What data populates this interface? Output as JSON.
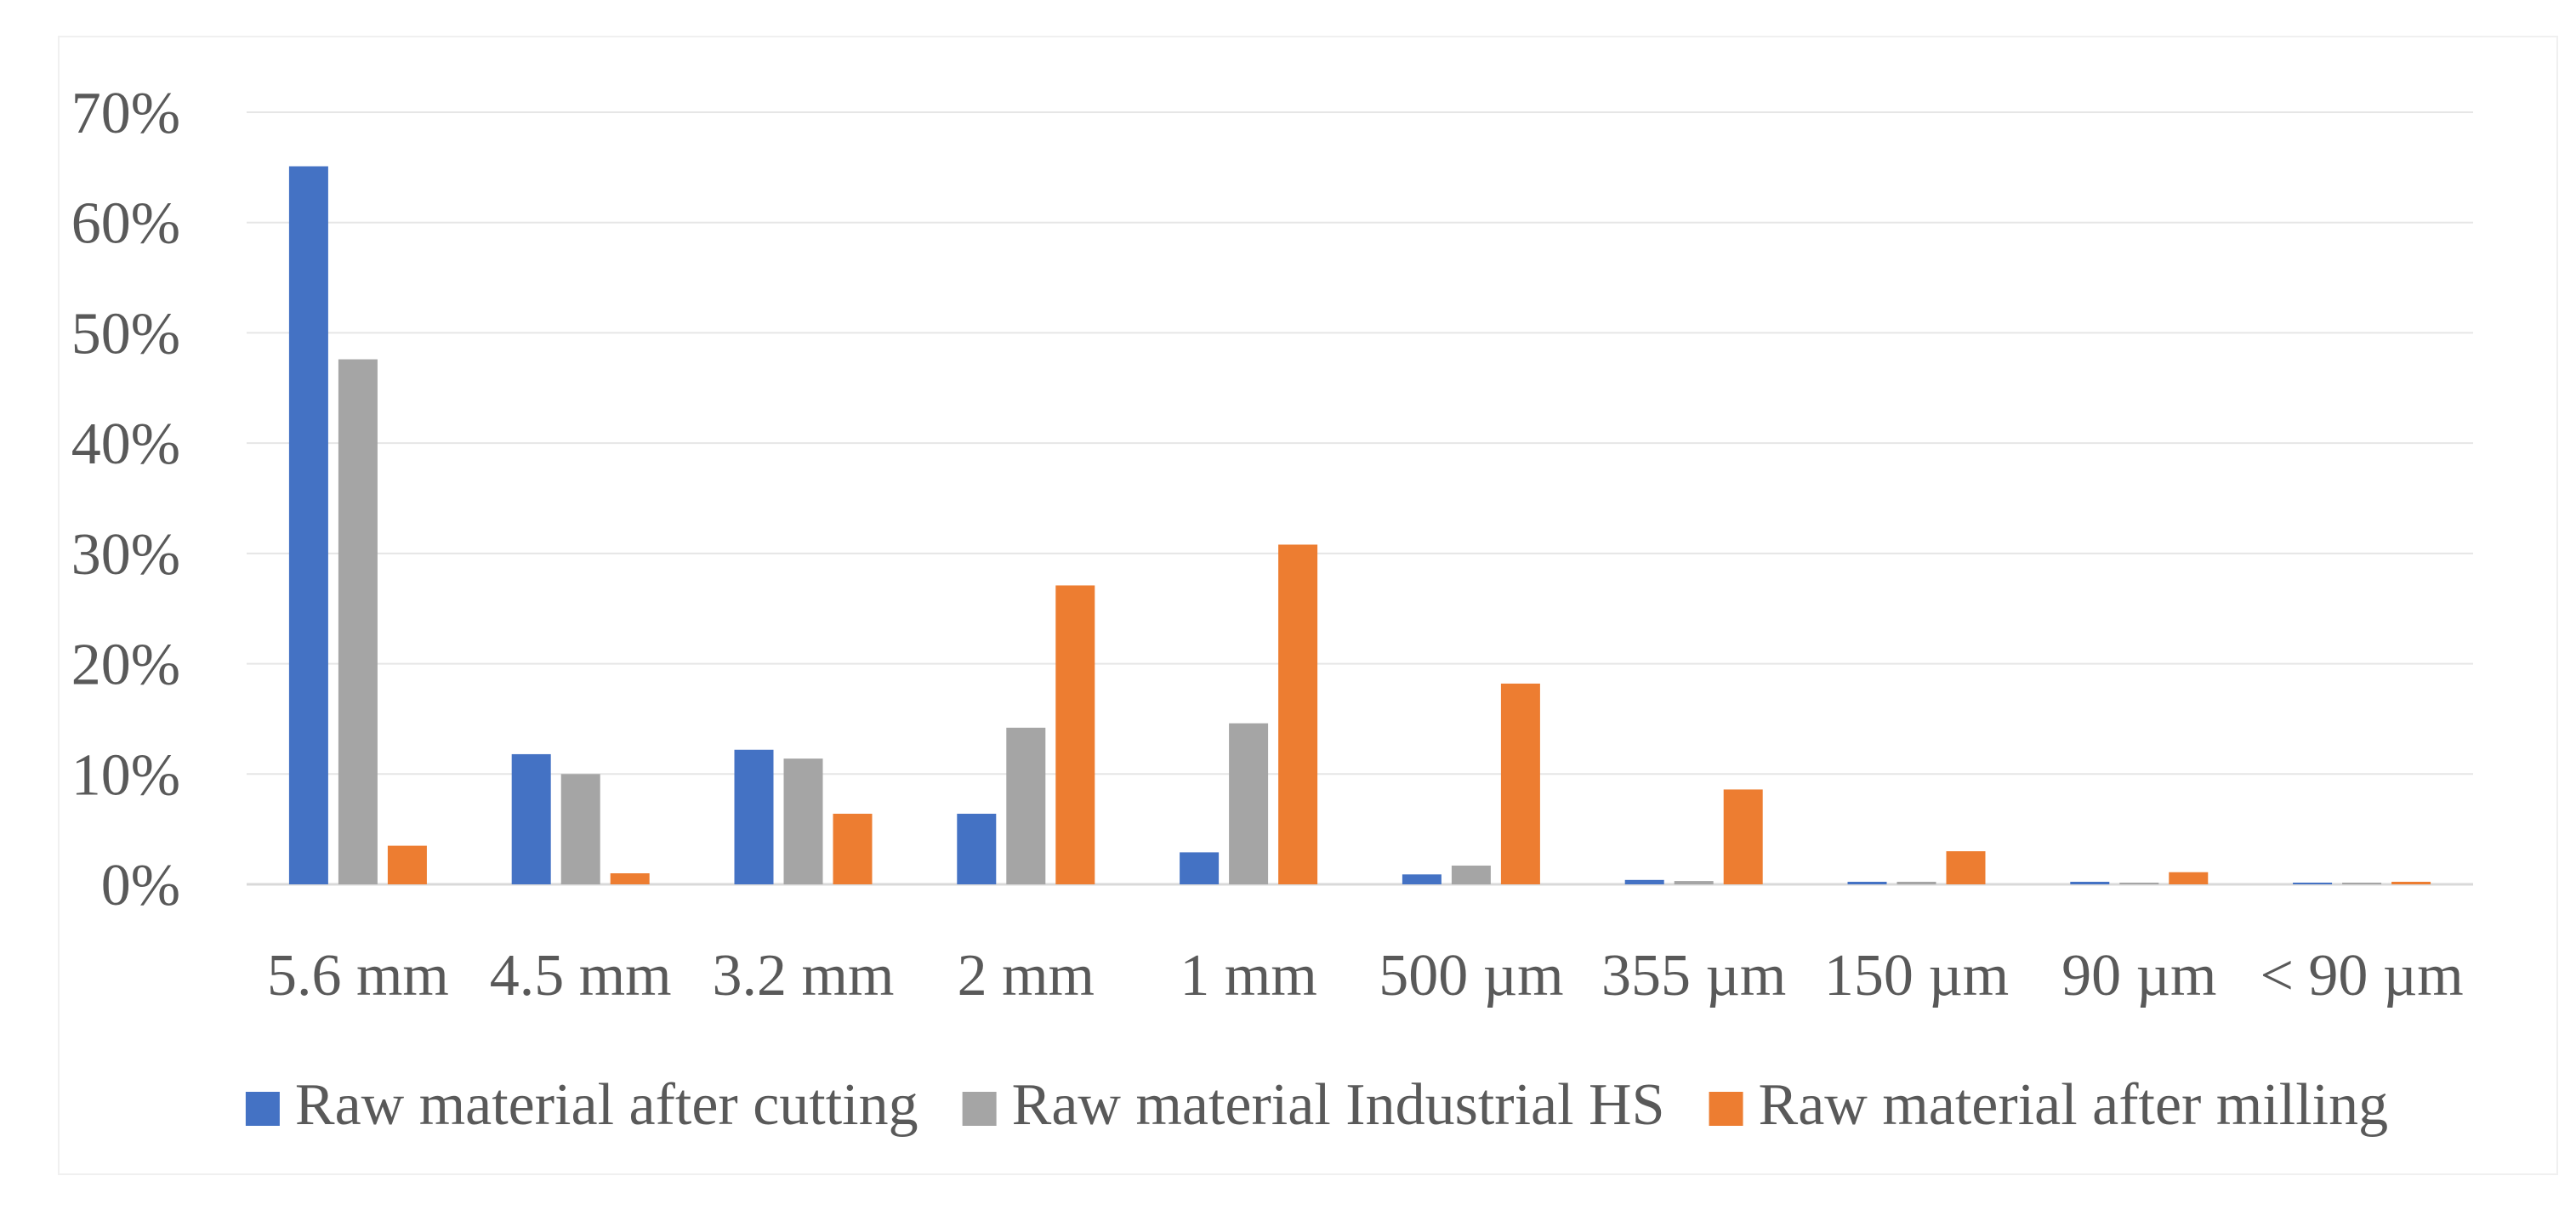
{
  "chart_data": {
    "type": "bar",
    "title": "",
    "xlabel": "",
    "ylabel": "",
    "ylim": [
      0,
      70
    ],
    "y_ticks": [
      "0%",
      "10%",
      "20%",
      "30%",
      "40%",
      "50%",
      "60%",
      "70%"
    ],
    "y_tick_values": [
      0,
      10,
      20,
      30,
      40,
      50,
      60,
      70
    ],
    "grid": true,
    "legend_position": "bottom",
    "categories": [
      "5.6 mm",
      "4.5 mm",
      "3.2 mm",
      "2 mm",
      "1 mm",
      "500 µm",
      "355 µm",
      "150 µm",
      "90 µm",
      "< 90 µm"
    ],
    "series": [
      {
        "name": "Raw material after cutting",
        "color": "#4472c4",
        "values": [
          65.1,
          11.8,
          12.2,
          6.4,
          2.9,
          0.9,
          0.4,
          0.2,
          0.1,
          0.0
        ]
      },
      {
        "name": "Raw material Industrial HS",
        "color": "#a5a5a5",
        "values": [
          47.6,
          10.0,
          11.4,
          14.2,
          14.6,
          1.7,
          0.3,
          0.1,
          0.0,
          0.0
        ]
      },
      {
        "name": "Raw material after milling",
        "color": "#ed7d31",
        "values": [
          3.5,
          1.0,
          6.4,
          27.1,
          30.8,
          18.2,
          8.6,
          3.0,
          1.1,
          0.2
        ]
      }
    ]
  }
}
